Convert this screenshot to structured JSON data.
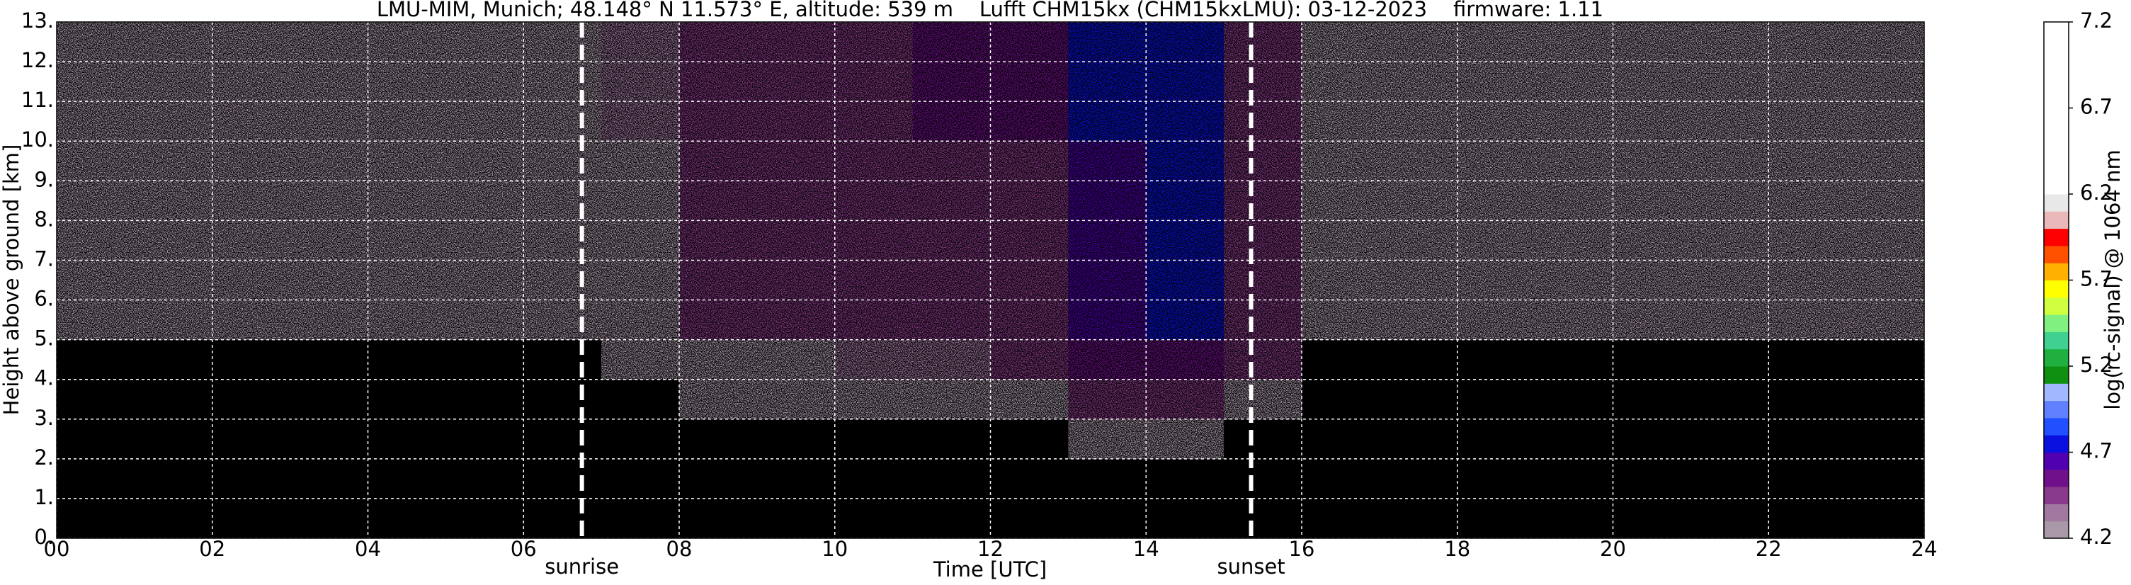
{
  "chart_data": {
    "type": "heatmap",
    "title": "LMU-MIM, Munich; 48.148° N 11.573° E, altitude: 539 m    Lufft CHM15kx (CHM15kxLMU): 03-12-2023    firmware: 1.11",
    "xlabel": "Time [UTC]",
    "ylabel": "Height above ground [km]",
    "xlim": [
      0,
      24
    ],
    "ylim": [
      0,
      13
    ],
    "xticks": [
      {
        "value": 0,
        "label": "00"
      },
      {
        "value": 2,
        "label": "02"
      },
      {
        "value": 4,
        "label": "04"
      },
      {
        "value": 6,
        "label": "06"
      },
      {
        "value": 8,
        "label": "08"
      },
      {
        "value": 10,
        "label": "10"
      },
      {
        "value": 12,
        "label": "12"
      },
      {
        "value": 14,
        "label": "14"
      },
      {
        "value": 16,
        "label": "16"
      },
      {
        "value": 18,
        "label": "18"
      },
      {
        "value": 20,
        "label": "20"
      },
      {
        "value": 22,
        "label": "22"
      },
      {
        "value": 24,
        "label": "24"
      }
    ],
    "yticks": [
      {
        "value": 0,
        "label": "0."
      },
      {
        "value": 1,
        "label": "1."
      },
      {
        "value": 2,
        "label": "2."
      },
      {
        "value": 3,
        "label": "3."
      },
      {
        "value": 4,
        "label": "4."
      },
      {
        "value": 5,
        "label": "5."
      },
      {
        "value": 6,
        "label": "6."
      },
      {
        "value": 7,
        "label": "7."
      },
      {
        "value": 8,
        "label": "8."
      },
      {
        "value": 9,
        "label": "9."
      },
      {
        "value": 10,
        "label": "10."
      },
      {
        "value": 11,
        "label": "11."
      },
      {
        "value": 12,
        "label": "12."
      },
      {
        "value": 13,
        "label": "13."
      }
    ],
    "grid": true,
    "x": [
      0,
      1,
      2,
      3,
      4,
      5,
      6,
      7,
      8,
      9,
      10,
      11,
      12,
      13,
      14,
      15,
      16,
      17,
      18,
      19,
      20,
      21,
      22,
      23
    ],
    "y": [
      0,
      1,
      2,
      3,
      4,
      5,
      6,
      7,
      8,
      9,
      10,
      11,
      12
    ],
    "z": [
      [
        4.0,
        4.0,
        4.0,
        4.0,
        4.0,
        4.0,
        4.0,
        4.0,
        4.0,
        4.0,
        4.0,
        4.0,
        4.0,
        4.0,
        4.0,
        4.0,
        4.0,
        4.0,
        4.0,
        4.0,
        4.0,
        4.0,
        4.0,
        4.0
      ],
      [
        4.0,
        4.0,
        4.0,
        4.0,
        4.0,
        4.0,
        4.0,
        4.0,
        4.0,
        4.0,
        4.0,
        4.0,
        4.05,
        4.1,
        4.1,
        4.0,
        4.0,
        4.0,
        4.0,
        4.0,
        4.0,
        4.0,
        4.0,
        4.0
      ],
      [
        4.0,
        4.0,
        4.0,
        4.0,
        4.0,
        4.0,
        4.0,
        4.05,
        4.1,
        4.1,
        4.1,
        4.1,
        4.15,
        4.3,
        4.3,
        4.15,
        4.0,
        4.0,
        4.0,
        4.0,
        4.0,
        4.0,
        4.0,
        4.0
      ],
      [
        4.05,
        4.05,
        4.05,
        4.05,
        4.05,
        4.05,
        4.05,
        4.15,
        4.2,
        4.2,
        4.25,
        4.25,
        4.3,
        4.45,
        4.45,
        4.3,
        4.05,
        4.05,
        4.05,
        4.05,
        4.05,
        4.05,
        4.05,
        4.05
      ],
      [
        4.1,
        4.1,
        4.1,
        4.1,
        4.1,
        4.1,
        4.1,
        4.2,
        4.3,
        4.3,
        4.35,
        4.35,
        4.4,
        4.55,
        4.55,
        4.4,
        4.1,
        4.1,
        4.1,
        4.1,
        4.1,
        4.1,
        4.1,
        4.1
      ],
      [
        4.2,
        4.2,
        4.2,
        4.2,
        4.2,
        4.2,
        4.2,
        4.3,
        4.4,
        4.4,
        4.45,
        4.5,
        4.5,
        4.65,
        4.7,
        4.45,
        4.2,
        4.2,
        4.2,
        4.2,
        4.2,
        4.2,
        4.2,
        4.2
      ],
      [
        4.2,
        4.2,
        4.2,
        4.2,
        4.2,
        4.2,
        4.2,
        4.3,
        4.4,
        4.4,
        4.45,
        4.5,
        4.5,
        4.65,
        4.7,
        4.45,
        4.2,
        4.2,
        4.2,
        4.2,
        4.2,
        4.2,
        4.2,
        4.2
      ],
      [
        4.2,
        4.2,
        4.2,
        4.2,
        4.2,
        4.2,
        4.2,
        4.3,
        4.4,
        4.4,
        4.45,
        4.5,
        4.5,
        4.65,
        4.7,
        4.45,
        4.2,
        4.2,
        4.2,
        4.2,
        4.2,
        4.2,
        4.2,
        4.2
      ],
      [
        4.2,
        4.2,
        4.2,
        4.2,
        4.2,
        4.2,
        4.2,
        4.3,
        4.4,
        4.4,
        4.45,
        4.5,
        4.5,
        4.65,
        4.7,
        4.45,
        4.2,
        4.2,
        4.2,
        4.2,
        4.2,
        4.2,
        4.2,
        4.2
      ],
      [
        4.2,
        4.2,
        4.2,
        4.2,
        4.2,
        4.2,
        4.2,
        4.3,
        4.4,
        4.4,
        4.45,
        4.5,
        4.5,
        4.65,
        4.7,
        4.45,
        4.2,
        4.2,
        4.2,
        4.2,
        4.2,
        4.2,
        4.2,
        4.2
      ],
      [
        4.25,
        4.25,
        4.25,
        4.25,
        4.25,
        4.25,
        4.25,
        4.35,
        4.45,
        4.45,
        4.5,
        4.55,
        4.55,
        4.7,
        4.75,
        4.5,
        4.25,
        4.25,
        4.25,
        4.25,
        4.25,
        4.25,
        4.25,
        4.25
      ],
      [
        4.25,
        4.25,
        4.25,
        4.25,
        4.25,
        4.25,
        4.25,
        4.35,
        4.45,
        4.45,
        4.5,
        4.55,
        4.55,
        4.7,
        4.75,
        4.5,
        4.25,
        4.25,
        4.25,
        4.25,
        4.25,
        4.25,
        4.25,
        4.25
      ],
      [
        4.25,
        4.25,
        4.25,
        4.25,
        4.25,
        4.25,
        4.25,
        4.35,
        4.45,
        4.45,
        4.5,
        4.55,
        4.55,
        4.7,
        4.75,
        4.5,
        4.25,
        4.25,
        4.25,
        4.25,
        4.25,
        4.25,
        4.25,
        4.25
      ]
    ],
    "annotations": [
      {
        "x": 6.75,
        "label": "sunrise"
      },
      {
        "x": 15.35,
        "label": "sunset"
      }
    ],
    "colorbar": {
      "label": "log(rc-signal) @ 1064 nm",
      "lim": [
        4.2,
        7.2
      ],
      "ticks": [
        4.2,
        4.7,
        5.2,
        5.7,
        6.2,
        6.7,
        7.2
      ],
      "under_color": "#000000",
      "colors": [
        "#a898a8",
        "#a078a0",
        "#8a3a8a",
        "#70108a",
        "#5000b0",
        "#0a10e0",
        "#2050ff",
        "#6080ff",
        "#a0b8ff",
        "#109010",
        "#20b040",
        "#40d090",
        "#80f080",
        "#d0ff40",
        "#ffff00",
        "#ffb000",
        "#ff5000",
        "#ff0000",
        "#eab8b8",
        "#e8e8e8",
        "#ffffff",
        "#ffffff",
        "#ffffff",
        "#ffffff",
        "#ffffff",
        "#ffffff",
        "#ffffff",
        "#ffffff",
        "#ffffff",
        "#ffffff"
      ]
    }
  }
}
